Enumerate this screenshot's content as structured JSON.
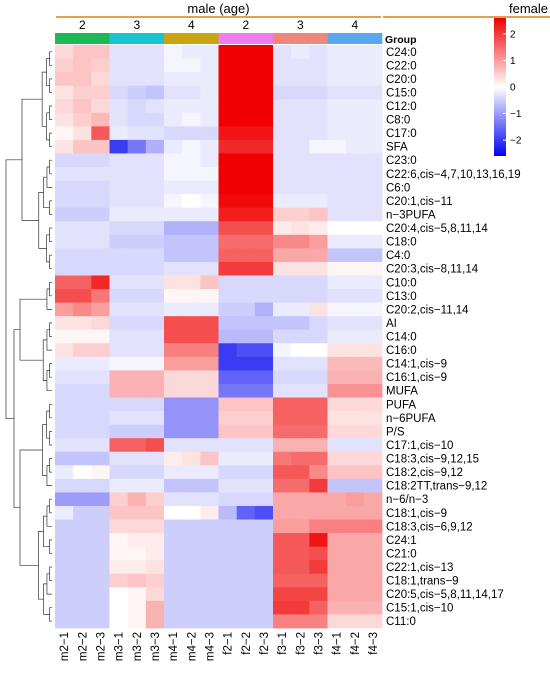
{
  "chart_data": {
    "type": "heatmap",
    "top_groups": [
      {
        "label": "male (age)",
        "span": [
          0,
          5
        ]
      },
      {
        "label": "female (age)",
        "span": [
          6,
          11
        ]
      }
    ],
    "annotation_title": "Group",
    "annotation_groups": [
      {
        "label": "2",
        "color": "#1DB954",
        "span": [
          0,
          1
        ]
      },
      {
        "label": "3",
        "color": "#17C4D2",
        "span": [
          2,
          3
        ]
      },
      {
        "label": "4",
        "color": "#C8A410",
        "span": [
          4,
          5
        ]
      },
      {
        "label": "2",
        "color": "#F07CF0",
        "span": [
          6,
          7
        ]
      },
      {
        "label": "3",
        "color": "#F0857A",
        "span": [
          8,
          9
        ]
      },
      {
        "label": "4",
        "color": "#58A8F0",
        "span": [
          10,
          11
        ]
      }
    ],
    "columns": [
      "m2−1",
      "m2−2",
      "m2−3",
      "m3−1",
      "m3−2",
      "m3−3",
      "m4−1",
      "m4−2",
      "m4−3",
      "f2−1",
      "f2−2",
      "f2−3",
      "f3−1",
      "f3−2",
      "f3−3",
      "f4−1",
      "f4−2",
      "f4−3"
    ],
    "rows": [
      "C24:0",
      "C22:0",
      "C20:0",
      "C15:0",
      "C12:0",
      "C8:0",
      "C17:0",
      "SFA",
      "C23:0",
      "C22:6,cis−4,7,10,13,16,19",
      "C6:0",
      "C20:1,cis−11",
      "n−3PUFA",
      "C20:4,cis−5,8,11,14",
      "C18:0",
      "C4:0",
      "C20:3,cis−8,11,14",
      "C10:0",
      "C13:0",
      "C20:2,cis−11,14",
      "AI",
      "C14:0",
      "C16:0",
      "C14:1,cis−9",
      "C16:1,cis−9",
      "MUFA",
      "PUFA",
      "n−6PUFA",
      "P/S",
      "C17:1,cis−10",
      "C18:3,cis−9,12,15",
      "C18:2,cis−9,12",
      "C18:2TT,trans−9,12",
      "n−6/n−3",
      "C18:1,cis−9",
      "C18:3,cis−6,9,12",
      "C24:1",
      "C21:0",
      "C22:1,cis−13",
      "C18:1,trans−9",
      "C20:5,cis−5,8,11,14,17",
      "C15:1,cis−10",
      "C11:0"
    ],
    "values": [
      [
        0.4,
        0.6,
        0.6,
        -0.3,
        -0.3,
        -0.3,
        -0.1,
        -0.2,
        -0.2,
        2.6,
        2.6,
        2.6,
        -0.3,
        -0.2,
        -0.3,
        -0.2,
        -0.2,
        -0.2
      ],
      [
        0.5,
        0.6,
        0.5,
        -0.3,
        -0.3,
        -0.3,
        -0.1,
        -0.1,
        -0.2,
        2.6,
        2.6,
        2.6,
        -0.3,
        -0.3,
        -0.3,
        -0.2,
        -0.2,
        -0.2
      ],
      [
        0.6,
        0.6,
        0.4,
        -0.3,
        -0.3,
        -0.3,
        -0.2,
        -0.2,
        -0.2,
        2.6,
        2.6,
        2.6,
        -0.3,
        -0.3,
        -0.3,
        -0.2,
        -0.2,
        -0.2
      ],
      [
        0.3,
        0.5,
        0.5,
        -0.4,
        -0.5,
        -0.6,
        -0.3,
        -0.3,
        -0.2,
        2.6,
        2.6,
        2.6,
        -0.4,
        -0.4,
        -0.4,
        -0.3,
        -0.3,
        -0.3
      ],
      [
        0.4,
        0.6,
        0.4,
        -0.3,
        -0.4,
        -0.3,
        -0.2,
        -0.2,
        -0.2,
        2.6,
        2.6,
        2.6,
        -0.3,
        -0.3,
        -0.3,
        -0.2,
        -0.2,
        -0.2
      ],
      [
        0.3,
        0.5,
        0.7,
        -0.3,
        -0.4,
        -0.4,
        -0.2,
        -0.1,
        -0.2,
        2.6,
        2.6,
        2.6,
        -0.3,
        -0.3,
        -0.3,
        -0.2,
        -0.2,
        -0.2
      ],
      [
        0.1,
        0.3,
        1.7,
        -0.2,
        -0.3,
        -0.3,
        -0.4,
        -0.4,
        -0.4,
        2.4,
        2.4,
        2.4,
        -0.3,
        -0.3,
        -0.3,
        -0.2,
        -0.2,
        -0.2
      ],
      [
        0.3,
        0.6,
        0.6,
        -2.0,
        -1.4,
        -0.8,
        -0.2,
        -0.1,
        -0.2,
        2.2,
        2.2,
        2.2,
        -0.3,
        -0.3,
        -0.1,
        -0.1,
        -0.2,
        -0.2
      ],
      [
        -0.4,
        -0.4,
        -0.4,
        -0.3,
        -0.3,
        -0.3,
        -0.1,
        -0.1,
        -0.2,
        2.6,
        2.6,
        2.6,
        -0.3,
        -0.3,
        -0.3,
        -0.3,
        -0.3,
        -0.3
      ],
      [
        -0.3,
        -0.3,
        -0.3,
        -0.3,
        -0.3,
        -0.3,
        -0.1,
        -0.1,
        -0.1,
        2.6,
        2.6,
        2.6,
        -0.3,
        -0.3,
        -0.3,
        -0.3,
        -0.3,
        -0.3
      ],
      [
        -0.4,
        -0.4,
        -0.4,
        -0.3,
        -0.3,
        -0.3,
        -0.2,
        -0.2,
        -0.2,
        2.6,
        2.6,
        2.6,
        -0.3,
        -0.3,
        -0.3,
        -0.3,
        -0.3,
        -0.3
      ],
      [
        -0.4,
        -0.4,
        -0.4,
        -0.3,
        -0.3,
        -0.3,
        -0.1,
        0.0,
        -0.1,
        2.5,
        2.5,
        2.5,
        -0.2,
        -0.2,
        -0.2,
        -0.3,
        -0.3,
        -0.3
      ],
      [
        -0.5,
        -0.5,
        -0.5,
        -0.2,
        -0.2,
        -0.2,
        -0.2,
        -0.2,
        -0.2,
        2.3,
        2.3,
        2.3,
        0.5,
        0.5,
        0.6,
        -0.3,
        -0.3,
        -0.3
      ],
      [
        -0.3,
        -0.3,
        -0.3,
        -0.4,
        -0.4,
        -0.4,
        -0.8,
        -0.8,
        -0.8,
        1.8,
        1.8,
        1.8,
        0.2,
        0.3,
        0.2,
        0.0,
        0.0,
        0.0
      ],
      [
        -0.3,
        -0.3,
        -0.3,
        -0.5,
        -0.5,
        -0.5,
        -0.6,
        -0.6,
        -0.6,
        1.5,
        1.5,
        1.5,
        1.2,
        1.2,
        1.0,
        -0.2,
        -0.2,
        -0.2
      ],
      [
        -0.4,
        -0.4,
        -0.4,
        -0.4,
        -0.4,
        -0.4,
        -0.6,
        -0.6,
        -0.6,
        1.6,
        1.6,
        1.6,
        0.9,
        0.9,
        0.9,
        -0.6,
        -0.6,
        -0.6
      ],
      [
        -0.4,
        -0.4,
        -0.4,
        -0.4,
        -0.4,
        -0.4,
        -0.3,
        -0.3,
        -0.3,
        2.0,
        2.0,
        2.0,
        0.3,
        0.3,
        0.3,
        0.1,
        0.1,
        0.1
      ],
      [
        1.6,
        1.6,
        2.2,
        -0.3,
        -0.3,
        -0.3,
        0.3,
        0.3,
        0.6,
        -0.4,
        -0.4,
        -0.4,
        -0.4,
        -0.4,
        -0.4,
        -0.2,
        -0.2,
        -0.2
      ],
      [
        1.8,
        1.8,
        1.4,
        -0.4,
        -0.4,
        -0.4,
        0.1,
        0.1,
        0.1,
        -0.4,
        -0.4,
        -0.4,
        -0.4,
        -0.4,
        -0.4,
        -0.3,
        -0.3,
        -0.3
      ],
      [
        1.0,
        1.2,
        1.0,
        -0.3,
        -0.3,
        -0.3,
        -0.2,
        -0.2,
        -0.2,
        -0.5,
        -0.5,
        -0.8,
        -0.2,
        -0.2,
        0.3,
        -0.1,
        -0.1,
        -0.1
      ],
      [
        0.3,
        0.3,
        0.4,
        -0.4,
        -0.4,
        -0.4,
        1.8,
        1.8,
        1.8,
        -0.6,
        -0.6,
        -0.6,
        -0.6,
        -0.6,
        -0.4,
        -0.3,
        -0.3,
        -0.3
      ],
      [
        0.1,
        0.1,
        0.1,
        -0.3,
        -0.3,
        -0.3,
        1.8,
        1.8,
        1.8,
        -0.7,
        -0.7,
        -0.7,
        -0.4,
        -0.4,
        -0.4,
        -0.2,
        -0.2,
        -0.2
      ],
      [
        0.3,
        0.5,
        0.5,
        -0.3,
        -0.3,
        -0.3,
        1.3,
        1.3,
        1.3,
        -2.0,
        -1.8,
        -1.8,
        -0.1,
        0.0,
        0.0,
        0.3,
        0.3,
        0.3
      ],
      [
        -0.2,
        -0.2,
        -0.2,
        -0.1,
        -0.1,
        -0.1,
        1.0,
        1.0,
        1.0,
        -2.0,
        -2.0,
        -2.0,
        -0.3,
        -0.3,
        -0.3,
        0.7,
        0.7,
        0.7
      ],
      [
        -0.3,
        -0.3,
        -0.3,
        0.8,
        0.8,
        0.8,
        0.4,
        0.4,
        0.4,
        -1.6,
        -1.6,
        -1.6,
        -0.4,
        -0.4,
        -0.4,
        0.8,
        0.8,
        0.8
      ],
      [
        -0.4,
        -0.4,
        -0.4,
        0.8,
        0.8,
        0.8,
        0.4,
        0.4,
        0.4,
        -1.4,
        -1.4,
        -1.4,
        -0.3,
        -0.3,
        -0.3,
        1.1,
        1.1,
        1.1
      ],
      [
        -0.4,
        -0.4,
        -0.4,
        -0.4,
        -0.4,
        -0.4,
        -1.1,
        -1.1,
        -1.1,
        0.6,
        0.6,
        0.6,
        1.6,
        1.6,
        1.6,
        0.4,
        0.4,
        0.4
      ],
      [
        -0.4,
        -0.4,
        -0.4,
        -0.3,
        -0.3,
        -0.3,
        -1.1,
        -1.1,
        -1.1,
        0.5,
        0.5,
        0.5,
        1.6,
        1.6,
        1.6,
        0.3,
        0.3,
        0.3
      ],
      [
        -0.4,
        -0.4,
        -0.4,
        -0.5,
        -0.5,
        -0.5,
        -1.1,
        -1.1,
        -1.1,
        0.6,
        0.6,
        0.6,
        1.5,
        1.5,
        1.5,
        0.4,
        0.4,
        0.4
      ],
      [
        -0.3,
        -0.3,
        -0.3,
        1.6,
        1.6,
        1.8,
        -0.3,
        -0.3,
        -0.3,
        -0.3,
        -0.3,
        -0.3,
        0.8,
        0.8,
        0.8,
        -0.3,
        -0.3,
        -0.3
      ],
      [
        -0.6,
        -0.6,
        -0.6,
        -0.3,
        -0.3,
        -0.3,
        0.2,
        0.3,
        0.6,
        -0.2,
        -0.2,
        -0.2,
        1.4,
        1.5,
        1.5,
        0.4,
        0.4,
        0.4
      ],
      [
        -0.2,
        0.0,
        0.1,
        -0.4,
        -0.4,
        -0.4,
        -0.2,
        -0.2,
        -0.2,
        -0.4,
        -0.4,
        -0.4,
        1.7,
        1.7,
        1.2,
        0.6,
        0.6,
        0.6
      ],
      [
        -0.4,
        -0.4,
        -0.4,
        -0.2,
        -0.2,
        -0.2,
        -0.6,
        -0.6,
        -0.6,
        -0.3,
        -0.3,
        -0.3,
        1.5,
        1.5,
        2.0,
        -0.6,
        -0.6,
        -0.6
      ],
      [
        -1.0,
        -1.0,
        -1.0,
        0.5,
        0.8,
        0.5,
        -0.3,
        -0.3,
        -0.3,
        -0.4,
        -0.4,
        -0.4,
        0.9,
        0.9,
        0.9,
        0.9,
        1.0,
        0.9
      ],
      [
        -0.2,
        -0.5,
        -0.5,
        0.6,
        0.6,
        0.6,
        0.0,
        0.0,
        0.2,
        -0.7,
        -1.6,
        -1.8,
        0.9,
        0.9,
        0.9,
        0.9,
        0.9,
        0.9
      ],
      [
        -0.5,
        -0.5,
        -0.5,
        0.4,
        0.4,
        0.4,
        -0.5,
        -0.5,
        -0.5,
        -0.5,
        -0.5,
        -0.5,
        1.0,
        1.0,
        1.3,
        1.3,
        1.3,
        1.3
      ],
      [
        -0.5,
        -0.5,
        -0.5,
        0.1,
        0.2,
        0.2,
        -0.5,
        -0.5,
        -0.5,
        -0.5,
        -0.5,
        -0.5,
        1.7,
        1.7,
        2.4,
        0.9,
        0.9,
        0.9
      ],
      [
        -0.5,
        -0.5,
        -0.5,
        0.1,
        0.1,
        0.2,
        -0.5,
        -0.5,
        -0.5,
        -0.5,
        -0.5,
        -0.5,
        1.7,
        1.7,
        1.8,
        0.9,
        0.9,
        0.9
      ],
      [
        -0.5,
        -0.5,
        -0.5,
        0.2,
        0.2,
        0.3,
        -0.5,
        -0.5,
        -0.5,
        -0.5,
        -0.5,
        -0.5,
        1.7,
        1.7,
        2.0,
        0.9,
        0.9,
        0.9
      ],
      [
        -0.5,
        -0.5,
        -0.5,
        0.5,
        0.6,
        0.5,
        -0.5,
        -0.5,
        -0.5,
        -0.5,
        -0.5,
        -0.5,
        1.6,
        1.6,
        1.6,
        0.9,
        0.9,
        0.9
      ],
      [
        -0.5,
        -0.5,
        -0.5,
        0.0,
        0.1,
        0.4,
        -0.5,
        -0.5,
        -0.5,
        -0.5,
        -0.5,
        -0.5,
        1.9,
        1.9,
        1.9,
        0.9,
        0.9,
        0.9
      ],
      [
        -0.5,
        -0.5,
        -0.5,
        0.0,
        0.1,
        0.8,
        -0.5,
        -0.5,
        -0.5,
        -0.5,
        -0.5,
        -0.5,
        2.0,
        2.0,
        1.6,
        0.8,
        0.8,
        0.8
      ],
      [
        -0.5,
        -0.5,
        -0.5,
        0.0,
        0.1,
        0.8,
        -0.5,
        -0.5,
        -0.5,
        -0.5,
        -0.5,
        -0.5,
        1.3,
        1.3,
        1.3,
        0.4,
        0.4,
        0.4
      ]
    ],
    "color_scale": {
      "min": -2.6,
      "max": 2.6,
      "stops": [
        {
          "value": -2.6,
          "color": "#0000F0"
        },
        {
          "value": 0,
          "color": "#FFFFFF"
        },
        {
          "value": 2.6,
          "color": "#F00000"
        }
      ],
      "ticks": [
        2,
        1,
        0,
        -1,
        -2
      ]
    },
    "legend_placement": "top-right",
    "row_dendrogram": true,
    "column_dendrogram": false
  }
}
